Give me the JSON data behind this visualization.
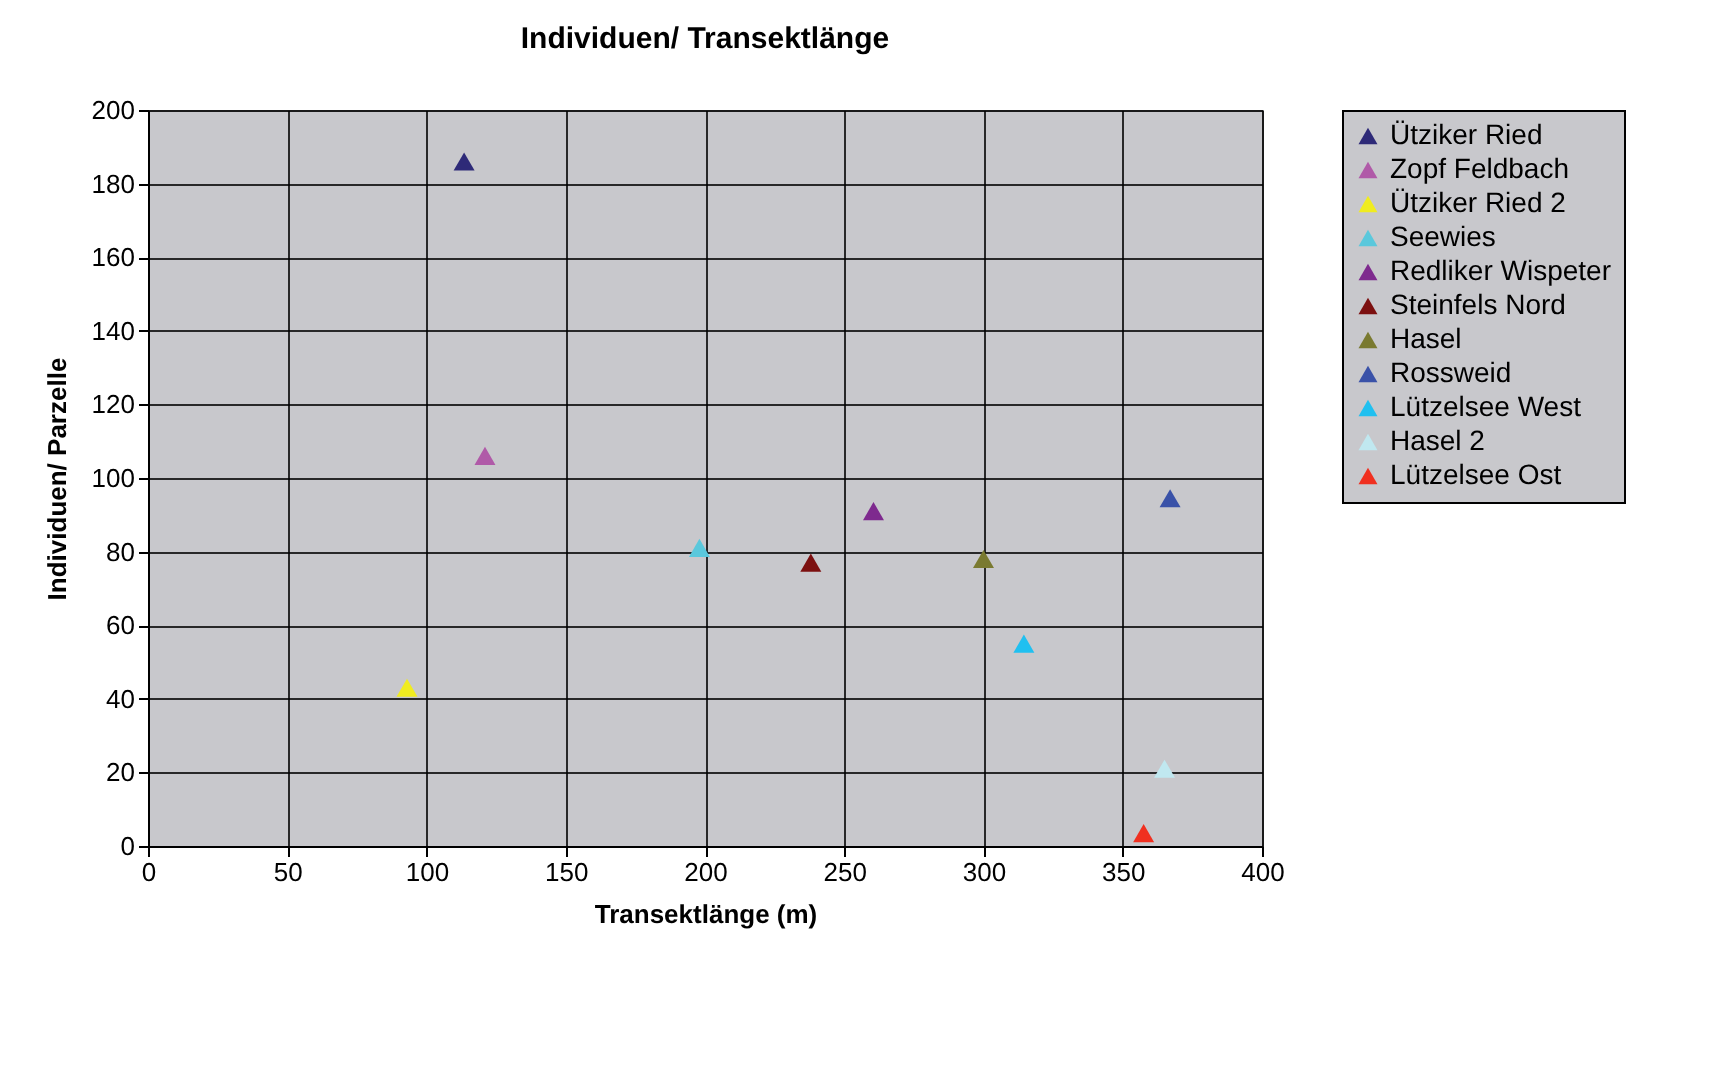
{
  "chart_data": {
    "type": "scatter",
    "title": "Individuen/ Transektlänge",
    "xlabel": "Transektlänge (m)",
    "ylabel": "Individuen/ Parzelle",
    "xlim": [
      0,
      400
    ],
    "xticks": [
      0,
      50,
      100,
      150,
      200,
      250,
      300,
      350,
      400
    ],
    "ylim": [
      0,
      200
    ],
    "yticks": [
      0,
      20,
      40,
      60,
      80,
      100,
      120,
      140,
      160,
      180,
      200
    ],
    "grid": true,
    "legend": "right",
    "marker": "triangle",
    "series": [
      {
        "name": "Ütziker Ried",
        "color": "#2e2a78",
        "x": [
          113.5
        ],
        "values": [
          186
        ]
      },
      {
        "name": "Zopf Feldbach",
        "color": "#b05aa8",
        "x": [
          121
        ],
        "values": [
          106
        ]
      },
      {
        "name": "Ütziker Ried 2",
        "color": "#f0ec20",
        "x": [
          93
        ],
        "values": [
          43
        ]
      },
      {
        "name": "Seewies",
        "color": "#5ac8dc",
        "x": [
          198
        ],
        "values": [
          81
        ]
      },
      {
        "name": "Redliker Wispeter",
        "color": "#7e2a8e",
        "x": [
          260.5
        ],
        "values": [
          91
        ]
      },
      {
        "name": "Steinfels Nord",
        "color": "#7c1010",
        "x": [
          238
        ],
        "values": [
          77
        ]
      },
      {
        "name": "Hasel",
        "color": "#7a7a30",
        "x": [
          300
        ],
        "values": [
          78
        ]
      },
      {
        "name": "Rossweid",
        "color": "#3a52a8",
        "x": [
          367
        ],
        "values": [
          94.5
        ]
      },
      {
        "name": "Lützelsee West",
        "color": "#20c0f0",
        "x": [
          314.5
        ],
        "values": [
          55
        ]
      },
      {
        "name": "Hasel 2",
        "color": "#c0e8f0",
        "x": [
          365
        ],
        "values": [
          21
        ]
      },
      {
        "name": "Lützelsee Ost",
        "color": "#f03020",
        "x": [
          357.5
        ],
        "values": [
          3.5
        ]
      }
    ]
  }
}
